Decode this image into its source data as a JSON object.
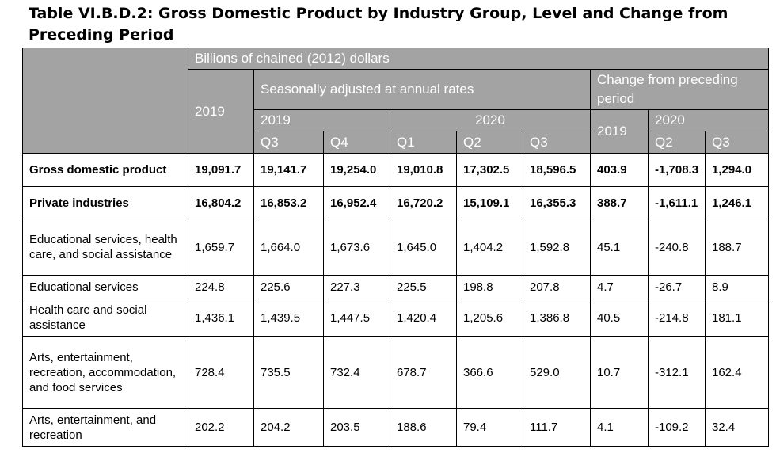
{
  "title": "Table VI.B.D.2: Gross Domestic Product by Industry Group, Level and Change from Preceding Period",
  "header": {
    "units": "Billions of chained (2012) dollars",
    "annual_year": "2019",
    "seasonal": "Seasonally adjusted at annual rates",
    "change": "Change from preceding period",
    "seasonal_years": [
      "2019",
      "2020"
    ],
    "change_annual_year": "2019",
    "change_year": "2020",
    "quarters": [
      "Q3",
      "Q4",
      "Q1",
      "Q2",
      "Q3"
    ],
    "change_quarters": [
      "Q2",
      "Q3"
    ]
  },
  "rows": [
    {
      "label": "Gross domestic product",
      "values": [
        "19,091.7",
        "19,141.7",
        "19,254.0",
        "19,010.8",
        "17,302.5",
        "18,596.5",
        "403.9",
        "-1,708.3",
        "1,294.0"
      ]
    },
    {
      "label": "Private industries",
      "values": [
        "16,804.2",
        "16,853.2",
        "16,952.4",
        "16,720.2",
        "15,109.1",
        "16,355.3",
        "388.7",
        "-1,611.1",
        "1,246.1"
      ]
    },
    {
      "label": "Educational services, health care, and social assistance",
      "values": [
        "1,659.7",
        "1,664.0",
        "1,673.6",
        "1,645.0",
        "1,404.2",
        "1,592.8",
        "45.1",
        "-240.8",
        "188.7"
      ]
    },
    {
      "label": "Educational services",
      "values": [
        "224.8",
        "225.6",
        "227.3",
        "225.5",
        "198.8",
        "207.8",
        "4.7",
        "-26.7",
        "8.9"
      ]
    },
    {
      "label": "Health care and social assistance",
      "values": [
        "1,436.1",
        "1,439.5",
        "1,447.5",
        "1,420.4",
        "1,205.6",
        "1,386.8",
        "40.5",
        "-214.8",
        "181.1"
      ]
    },
    {
      "label": "Arts, entertainment, recreation, accommodation, and food services",
      "values": [
        "728.4",
        "735.5",
        "732.4",
        "678.7",
        "366.6",
        "529.0",
        "10.7",
        "-312.1",
        "162.4"
      ]
    },
    {
      "label": "Arts, entertainment, and recreation",
      "values": [
        "202.2",
        "204.2",
        "203.5",
        "188.6",
        "79.4",
        "111.7",
        "4.1",
        "-109.2",
        "32.4"
      ]
    }
  ]
}
